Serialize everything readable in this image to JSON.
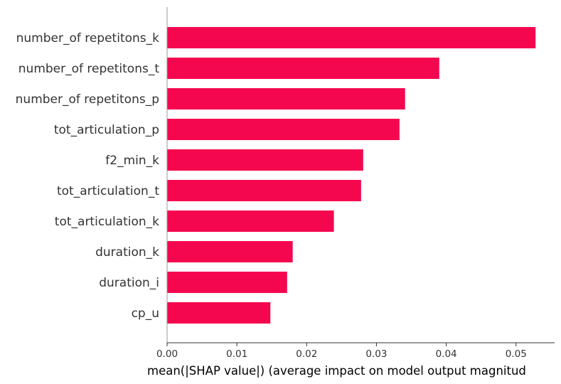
{
  "chart_data": {
    "type": "bar",
    "orientation": "horizontal",
    "categories": [
      "number_of repetitons_k",
      "number_of repetitons_t",
      "number_of repetitons_p",
      "tot_articulation_p",
      "f2_min_k",
      "tot_articulation_t",
      "tot_articulation_k",
      "duration_k",
      "duration_i",
      "cp_u"
    ],
    "values": [
      0.0528,
      0.039,
      0.0341,
      0.0333,
      0.0281,
      0.0278,
      0.0239,
      0.018,
      0.0172,
      0.0148
    ],
    "xlabel": "mean(|SHAP value|) (average impact on model output magnitud",
    "ylabel": "",
    "title": "",
    "xlim": [
      0,
      0.055
    ],
    "xticks": [
      "0.00",
      "0.01",
      "0.02",
      "0.03",
      "0.04",
      "0.05"
    ],
    "xtick_values": [
      0,
      0.01,
      0.02,
      0.03,
      0.04,
      0.05
    ],
    "bar_color": "#f5074f",
    "grid": false,
    "legend": "none"
  }
}
